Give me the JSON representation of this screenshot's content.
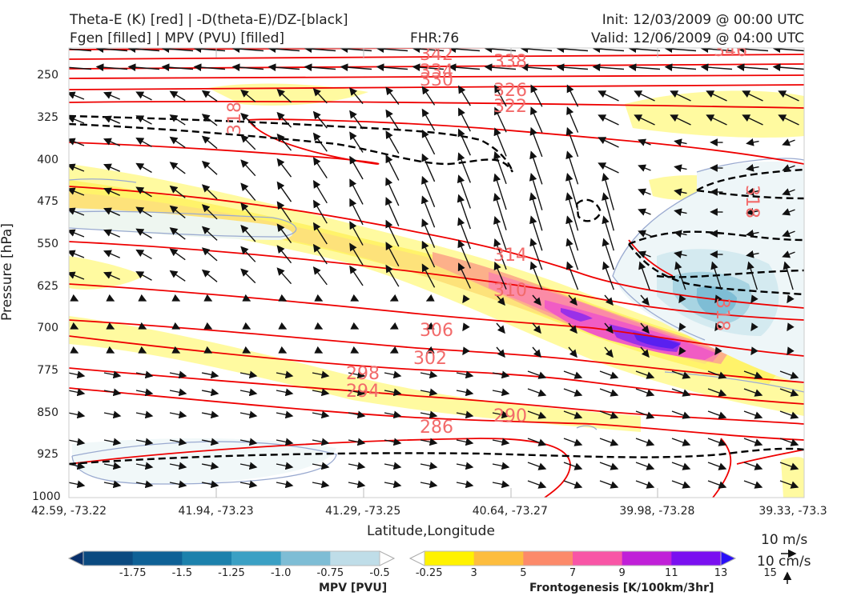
{
  "header": {
    "title_line1_left": "Theta-E (K) [red] | -D(theta-E)/DZ-[black]",
    "title_line2_left": "Fgen [filled] | MPV (PVU) [filled]",
    "fhr": "FHR:76",
    "init": "Init: 12/03/2009 @ 00:00 UTC",
    "valid": "Valid: 12/06/2009 @ 04:00 UTC"
  },
  "chart_data": {
    "type": "cross-section",
    "xlabel": "Latitude,Longitude",
    "ylabel": "Pressure [hPa]",
    "x_ticks": [
      "42.59, -73.22",
      "41.94, -73.23",
      "41.29, -73.25",
      "40.64, -73.27",
      "39.98, -73.28",
      "39.33, -73.3"
    ],
    "y_ticks": [
      250,
      325,
      400,
      475,
      550,
      625,
      700,
      775,
      850,
      925,
      1000
    ],
    "ylim": [
      1000,
      200
    ],
    "theta_e_contours": {
      "color": "#ee0000",
      "labels": [
        "342",
        "338",
        "334",
        "330",
        "326",
        "322",
        "318",
        "318",
        "318",
        "314",
        "310",
        "306",
        "302",
        "298",
        "294",
        "290",
        "286",
        "346"
      ]
    },
    "mpv_colorbar": {
      "label": "MPV [PVU]",
      "ticks": [
        "-1.75",
        "-1.5",
        "-1.25",
        "-1.0",
        "-0.75",
        "-0.5",
        "-0.25"
      ],
      "colors": [
        "#08306b",
        "#0b4a80",
        "#0f6196",
        "#1c81ac",
        "#3ba0c4",
        "#7ebdd5",
        "#bfdde8",
        "#ffffff"
      ]
    },
    "fgen_colorbar": {
      "label": "Frontogenesis [K/100km/3hr]",
      "ticks": [
        "3",
        "5",
        "7",
        "9",
        "11",
        "13",
        "15"
      ],
      "colors": [
        "#ffffff",
        "#fff200",
        "#fdbd3e",
        "#fc8a6a",
        "#f856a6",
        "#c020d8",
        "#7a10f0",
        "#2a10f8"
      ]
    },
    "wind_reference": {
      "horizontal": "10 m/s",
      "vertical": "10 cm/s"
    }
  }
}
